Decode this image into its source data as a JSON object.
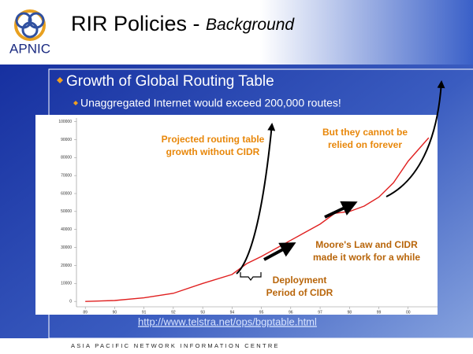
{
  "slide": {
    "logo": "APNIC",
    "title": "RIR Policies - ",
    "title_italic": "Background",
    "bullets": [
      "Growth of Global Routing Table"
    ],
    "sub_bullets": [
      "Unaggregated Internet would exceed 200,000 routes!"
    ],
    "url": "http://www.telstra.net/ops/bgptable.html",
    "footer": "ASIA PACIFIC NETWORK INFORMATION CENTRE"
  },
  "chart_data": {
    "type": "line",
    "x": [
      89,
      90,
      91,
      92,
      93,
      94,
      94.5,
      95,
      96,
      97,
      97.5,
      98,
      98.5,
      99,
      99.5,
      100,
      100.7
    ],
    "series": [
      {
        "color": "#e02020",
        "values": [
          0,
          500,
          2000,
          4500,
          10000,
          15000,
          21000,
          25000,
          34000,
          43000,
          49000,
          50000,
          53000,
          58000,
          66000,
          78000,
          91000
        ]
      }
    ],
    "xlim": [
      88.7,
      101
    ],
    "ylim": [
      -3000,
      102000
    ],
    "xticks": [
      89,
      90,
      91,
      92,
      93,
      94,
      95,
      96,
      97,
      98,
      99,
      {
        "value": 100,
        "label": "00"
      }
    ],
    "yticks": [
      0,
      10000,
      20000,
      30000,
      40000,
      50000,
      60000,
      70000,
      80000,
      90000,
      100000
    ],
    "annotations": [
      [
        "Projected routing table",
        "growth without CIDR"
      ],
      [
        "But they cannot be",
        "relied on forever"
      ],
      [
        "Moore's Law and CIDR",
        "made it work for a while"
      ],
      [
        "Deployment",
        "Period of CIDR"
      ]
    ]
  }
}
